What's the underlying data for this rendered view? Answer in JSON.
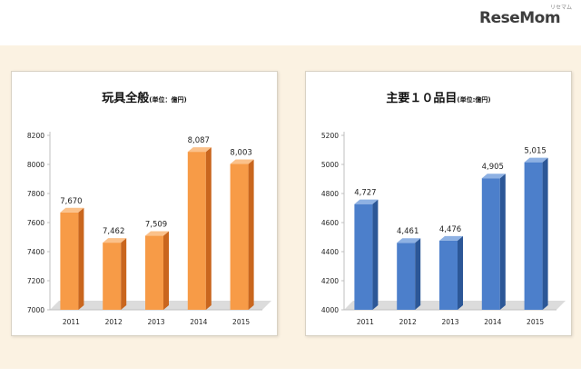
{
  "logo": {
    "text": "ReseMom",
    "ruby": "リセマム"
  },
  "colors": {
    "orange_front": "#f79b47",
    "orange_side": "#c9661e",
    "orange_top": "#fbc18a",
    "blue_front": "#4c7fcb",
    "blue_side": "#2c5797",
    "blue_top": "#8eb1e3",
    "floor": "#dcdcdc",
    "axis": "#bfbfbf",
    "text": "#222222"
  },
  "chart_data": [
    {
      "type": "bar",
      "title": "玩具全般",
      "unit": "(単位：億円)",
      "categories": [
        "2011",
        "2012",
        "2013",
        "2014",
        "2015"
      ],
      "values": [
        7670,
        7462,
        7509,
        8087,
        8003
      ],
      "data_labels": [
        "7,670",
        "7,462",
        "7,509",
        "8,087",
        "8,003"
      ],
      "ylim": [
        7000,
        8200
      ],
      "yticks": [
        "7000",
        "7200",
        "7400",
        "7600",
        "7800",
        "8000",
        "8200"
      ],
      "color": "orange",
      "grid": false,
      "style": "3d-column"
    },
    {
      "type": "bar",
      "title": "主要１０品目",
      "unit": "(単位:億円)",
      "categories": [
        "2011",
        "2012",
        "2013",
        "2014",
        "2015"
      ],
      "values": [
        4727,
        4461,
        4476,
        4905,
        5015
      ],
      "data_labels": [
        "4,727",
        "4,461",
        "4,476",
        "4,905",
        "5,015"
      ],
      "ylim": [
        4000,
        5200
      ],
      "yticks": [
        "4000",
        "4200",
        "4400",
        "4600",
        "4800",
        "5000",
        "5200"
      ],
      "color": "blue",
      "grid": false,
      "style": "3d-column"
    }
  ]
}
